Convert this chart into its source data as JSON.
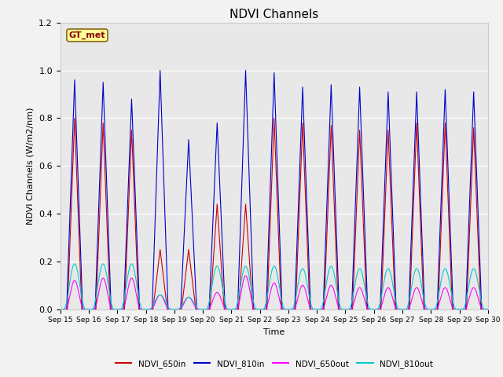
{
  "title": "NDVI Channels",
  "xlabel": "Time",
  "ylabel": "NDVI Channels (W/m2/nm)",
  "ylim": [
    0,
    1.2
  ],
  "xlim_days": [
    15,
    30
  ],
  "fig_bg_color": "#f2f2f2",
  "plot_bg_color": "#e8e8e8",
  "series": {
    "NDVI_650in": {
      "color": "#cc0000",
      "lw": 0.8
    },
    "NDVI_810in": {
      "color": "#0000cc",
      "lw": 0.8
    },
    "NDVI_650out": {
      "color": "#ff00ff",
      "lw": 0.8
    },
    "NDVI_810out": {
      "color": "#00cccc",
      "lw": 0.8
    }
  },
  "day_peaks": {
    "15": {
      "in650": 0.8,
      "in810": 0.96,
      "out650": 0.12,
      "out810": 0.19
    },
    "16": {
      "in650": 0.78,
      "in810": 0.95,
      "out650": 0.13,
      "out810": 0.19
    },
    "17": {
      "in650": 0.75,
      "in810": 0.88,
      "out650": 0.13,
      "out810": 0.19
    },
    "18": {
      "in650": 0.25,
      "in810": 1.0,
      "out650": 0.06,
      "out810": 0.06
    },
    "19": {
      "in650": 0.25,
      "in810": 0.71,
      "out650": 0.05,
      "out810": 0.05
    },
    "20": {
      "in650": 0.44,
      "in810": 0.78,
      "out650": 0.07,
      "out810": 0.18
    },
    "21": {
      "in650": 0.44,
      "in810": 1.0,
      "out650": 0.14,
      "out810": 0.18
    },
    "22": {
      "in650": 0.8,
      "in810": 0.99,
      "out650": 0.11,
      "out810": 0.18
    },
    "23": {
      "in650": 0.78,
      "in810": 0.93,
      "out650": 0.1,
      "out810": 0.17
    },
    "24": {
      "in650": 0.77,
      "in810": 0.94,
      "out650": 0.1,
      "out810": 0.18
    },
    "25": {
      "in650": 0.75,
      "in810": 0.93,
      "out650": 0.09,
      "out810": 0.17
    },
    "26": {
      "in650": 0.75,
      "in810": 0.91,
      "out650": 0.09,
      "out810": 0.17
    },
    "27": {
      "in650": 0.78,
      "in810": 0.91,
      "out650": 0.09,
      "out810": 0.17
    },
    "28": {
      "in650": 0.78,
      "in810": 0.92,
      "out650": 0.09,
      "out810": 0.17
    },
    "29": {
      "in650": 0.76,
      "in810": 0.91,
      "out650": 0.09,
      "out810": 0.17
    }
  },
  "xtick_days": [
    15,
    16,
    17,
    18,
    19,
    20,
    21,
    22,
    23,
    24,
    25,
    26,
    27,
    28,
    29,
    30
  ],
  "xtick_labels": [
    "Sep 15",
    "Sep 16",
    "Sep 17",
    "Sep 18",
    "Sep 19",
    "Sep 20",
    "Sep 21",
    "Sep 22",
    "Sep 23",
    "Sep 24",
    "Sep 25",
    "Sep 26",
    "Sep 27",
    "Sep 28",
    "Sep 29",
    "Sep 30"
  ],
  "gt_label": "GT_met",
  "gt_label_color": "#8b0000",
  "gt_bg_color": "#ffff99",
  "gt_border_color": "#8b6914",
  "yticks": [
    0.0,
    0.2,
    0.4,
    0.6,
    0.8,
    1.0,
    1.2
  ]
}
